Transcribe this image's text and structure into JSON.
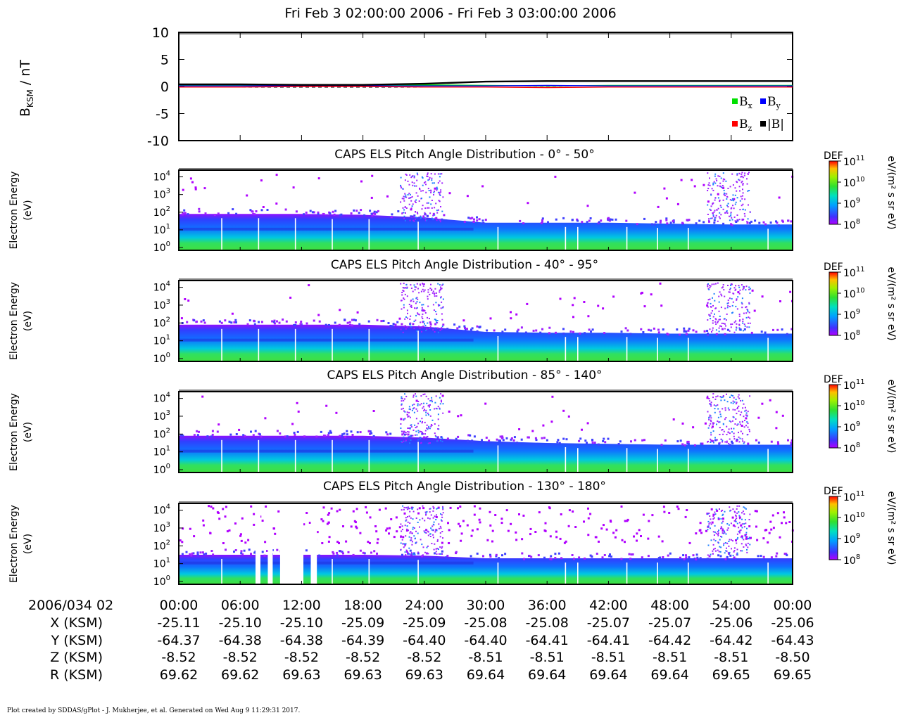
{
  "title": "Fri Feb 3 02:00:00 2006 - Fri Feb 3 03:00:00 2006",
  "footer": "Plot created by SDDAS/gPlot - J. Mukherjee, et al.  Generated on Wed Aug 9 11:29:31 2017.",
  "colors": {
    "bx": "#00e000",
    "by": "#0000ff",
    "bz": "#ff0000",
    "btot": "#000000"
  },
  "chart_data": [
    {
      "type": "line",
      "ylabel": "B",
      "ylabel_sub": "KSM",
      "ylabel_unit": " / nT",
      "ylim": [
        -10,
        10
      ],
      "yticks": [
        "10",
        "5",
        "0",
        "-5",
        "-10"
      ],
      "x_minutes": [
        0,
        6,
        12,
        18,
        24,
        30,
        36,
        42,
        48,
        54,
        60
      ],
      "legend_placement": "bottom-right",
      "legend": [
        {
          "base": "B",
          "sub": "x"
        },
        {
          "base": "B",
          "sub": "y"
        },
        {
          "base": "B",
          "sub": "z"
        },
        {
          "base": "|B|",
          "sub": ""
        }
      ],
      "series": [
        {
          "values": [
            0.2,
            0.2,
            0.1,
            0.1,
            0.3,
            0.2,
            0.1,
            0.2,
            0.2,
            0.2,
            0.2
          ]
        },
        {
          "values": [
            0.1,
            0.1,
            0.1,
            0.1,
            0.1,
            0.1,
            0.2,
            0.1,
            0.1,
            0.1,
            0.1
          ]
        },
        {
          "values": [
            -0.1,
            -0.1,
            0.0,
            0.0,
            -0.1,
            -0.1,
            -0.2,
            -0.1,
            -0.1,
            -0.1,
            -0.1
          ]
        },
        {
          "values": [
            0.4,
            0.4,
            0.3,
            0.3,
            0.5,
            0.9,
            1.0,
            1.0,
            1.0,
            1.0,
            1.0
          ]
        }
      ]
    },
    {
      "type": "heatmap",
      "title": "CAPS ELS Pitch Angle Distribution - 0° - 50°",
      "ylabel": [
        "Electron Energy",
        "(eV)"
      ],
      "yticks": [
        "4",
        "3",
        "2",
        "1",
        "0"
      ],
      "colorbar": {
        "label": "DEF",
        "unit": "eV/(m² s sr eV)",
        "ticks": [
          "11",
          "10",
          "9",
          "8"
        ]
      },
      "band_top_log_eV": [
        1.9,
        1.9,
        1.9,
        1.85,
        1.7,
        1.4,
        1.4,
        1.4,
        1.35,
        1.3,
        1.3
      ]
    },
    {
      "type": "heatmap",
      "title": "CAPS ELS Pitch Angle Distribution - 40° - 95°",
      "ylabel": [
        "Electron Energy",
        "(eV)"
      ],
      "yticks": [
        "4",
        "3",
        "2",
        "1",
        "0"
      ],
      "colorbar": {
        "label": "DEF",
        "unit": "eV/(m² s sr eV)",
        "ticks": [
          "11",
          "10",
          "9",
          "8"
        ]
      },
      "band_top_log_eV": [
        1.9,
        1.9,
        1.9,
        1.9,
        1.8,
        1.5,
        1.45,
        1.45,
        1.4,
        1.4,
        1.4
      ]
    },
    {
      "type": "heatmap",
      "title": "CAPS ELS Pitch Angle Distribution - 85° - 140°",
      "ylabel": [
        "Electron Energy",
        "(eV)"
      ],
      "yticks": [
        "4",
        "3",
        "2",
        "1",
        "0"
      ],
      "colorbar": {
        "label": "DEF",
        "unit": "eV/(m² s sr eV)",
        "ticks": [
          "11",
          "10",
          "9",
          "8"
        ]
      },
      "band_top_log_eV": [
        1.9,
        1.9,
        1.9,
        1.9,
        1.8,
        1.6,
        1.5,
        1.45,
        1.4,
        1.4,
        1.4
      ]
    },
    {
      "type": "heatmap",
      "title": "CAPS ELS Pitch Angle Distribution - 130° - 180°",
      "ylabel": [
        "Electron Energy",
        "(eV)"
      ],
      "yticks": [
        "4",
        "3",
        "2",
        "1",
        "0"
      ],
      "colorbar": {
        "label": "DEF",
        "unit": "eV/(m² s sr eV)",
        "ticks": [
          "11",
          "10",
          "9",
          "8"
        ]
      },
      "band_top_log_eV": [
        1.5,
        1.5,
        1.5,
        1.5,
        1.45,
        1.3,
        1.3,
        1.3,
        1.3,
        1.3,
        1.3
      ]
    }
  ],
  "time_axis": {
    "row_label": "2006/034 02",
    "ticks": [
      "00:00",
      "06:00",
      "12:00",
      "18:00",
      "24:00",
      "30:00",
      "36:00",
      "42:00",
      "48:00",
      "54:00",
      "00:00"
    ]
  },
  "ephemeris": [
    {
      "label": "X (KSM)",
      "values": [
        "-25.11",
        "-25.10",
        "-25.10",
        "-25.09",
        "-25.09",
        "-25.08",
        "-25.08",
        "-25.07",
        "-25.07",
        "-25.06",
        "-25.06"
      ]
    },
    {
      "label": "Y (KSM)",
      "values": [
        "-64.37",
        "-64.38",
        "-64.38",
        "-64.39",
        "-64.40",
        "-64.40",
        "-64.41",
        "-64.41",
        "-64.42",
        "-64.42",
        "-64.43"
      ]
    },
    {
      "label": "Z (KSM)",
      "values": [
        "-8.52",
        "-8.52",
        "-8.52",
        "-8.52",
        "-8.52",
        "-8.51",
        "-8.51",
        "-8.51",
        "-8.51",
        "-8.51",
        "-8.50"
      ]
    },
    {
      "label": "R (KSM)",
      "values": [
        "69.62",
        "69.62",
        "69.63",
        "69.63",
        "69.63",
        "69.64",
        "69.64",
        "69.64",
        "69.64",
        "69.65",
        "69.65"
      ]
    }
  ]
}
